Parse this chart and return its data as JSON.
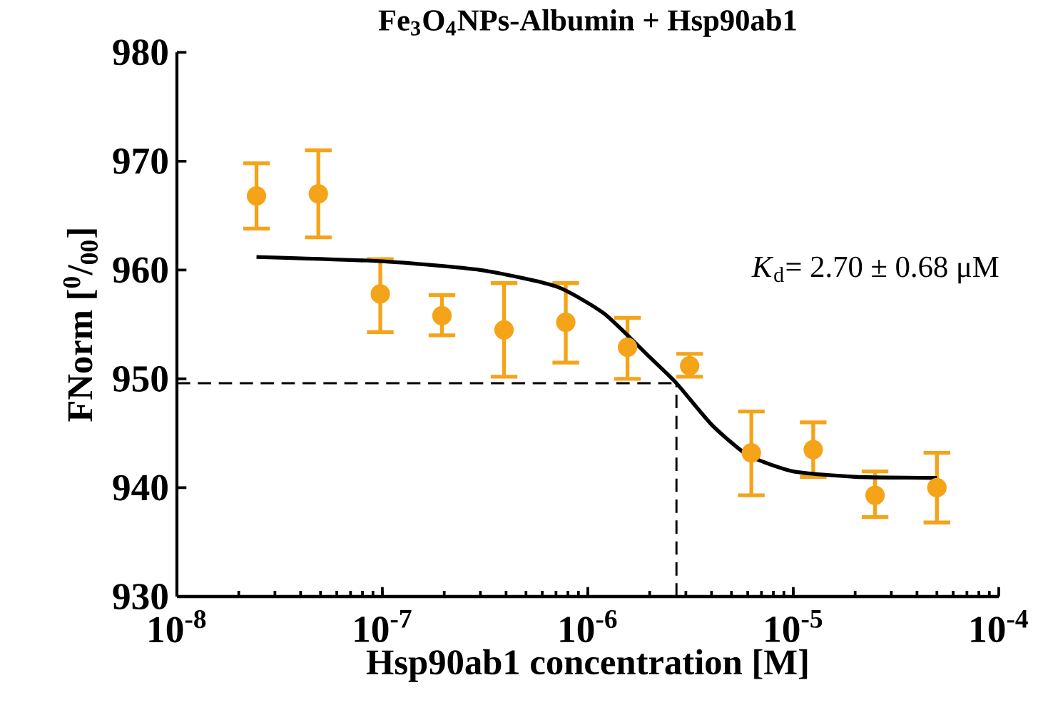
{
  "chart_data": {
    "type": "scatter",
    "title": "Fe$_{3}$O$_{4}$NPs-Albumin + Hsp90ab1",
    "xlabel": "Hsp90ab1 concentration [M]",
    "ylabel": "FNorm [$^{0}$/$_{00}$]",
    "log": "x",
    "xlim": [
      1e-08,
      0.0001
    ],
    "ylim": [
      930,
      980
    ],
    "xticks": [
      {
        "value": 1e-08,
        "label": "10$^{-8}$"
      },
      {
        "value": 1e-07,
        "label": "10$^{-7}$"
      },
      {
        "value": 1e-06,
        "label": "10$^{-6}$"
      },
      {
        "value": 1e-05,
        "label": "10$^{-5}$"
      },
      {
        "value": 0.0001,
        "label": "10$^{-4}$"
      }
    ],
    "yticks": [
      930,
      940,
      950,
      960,
      970,
      980
    ],
    "series": [
      {
        "marker": "circle",
        "color": "#f5a319",
        "x": [
          2.44e-08,
          4.88e-08,
          9.77e-08,
          1.95e-07,
          3.91e-07,
          7.81e-07,
          1.56e-06,
          3.13e-06,
          6.25e-06,
          1.25e-05,
          2.5e-05,
          5e-05
        ],
        "values": [
          966.8,
          967.0,
          957.8,
          955.8,
          954.5,
          955.2,
          952.9,
          951.2,
          943.2,
          943.5,
          939.3,
          940.0
        ],
        "errors": [
          [
            963.8,
            969.8
          ],
          [
            963.0,
            971.0
          ],
          [
            954.3,
            961.0
          ],
          [
            954.0,
            957.7
          ],
          [
            950.2,
            958.8
          ],
          [
            951.5,
            958.8
          ],
          [
            950.0,
            955.6
          ],
          [
            950.2,
            952.3
          ],
          [
            939.3,
            947.0
          ],
          [
            941.0,
            946.0
          ],
          [
            937.3,
            941.5
          ],
          [
            936.8,
            943.2
          ]
        ]
      },
      {
        "type": "line",
        "marker": "none",
        "color": "#000000",
        "x": [
          2.44e-08,
          1e-07,
          3e-07,
          7e-07,
          1.2e-06,
          2e-06,
          2.7e-06,
          4e-06,
          6e-06,
          1e-05,
          2e-05,
          5e-05
        ],
        "values": [
          961.2,
          960.8,
          960.0,
          958.5,
          956.0,
          952.0,
          949.6,
          945.8,
          943.0,
          941.5,
          941.0,
          940.9
        ]
      }
    ],
    "ref_lines": [
      {
        "axis": "y",
        "value": 949.6,
        "color": "#000000",
        "line_style": "dashed"
      },
      {
        "axis": "x",
        "value": 2.7e-06,
        "color": "#000000",
        "line_style": "dashed"
      }
    ],
    "annotations": [
      "*K*$_{d}$= 2.70 ± 0.68 μM"
    ]
  }
}
